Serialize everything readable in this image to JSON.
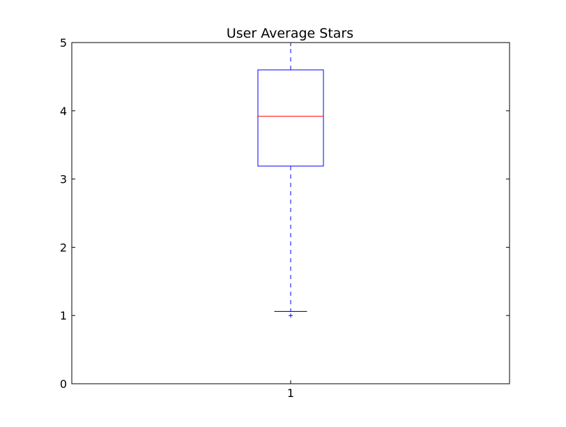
{
  "chart_data": {
    "type": "box",
    "title": "User Average Stars",
    "xlabel": "",
    "ylabel": "",
    "categories": [
      "1"
    ],
    "ylim": [
      0,
      5
    ],
    "yticks": [
      "0",
      "1",
      "2",
      "3",
      "4",
      "5"
    ],
    "grid": false,
    "boxes": [
      {
        "label": "1",
        "whisker_low": 1.06,
        "q1": 3.19,
        "median": 3.92,
        "q3": 4.6,
        "whisker_high": 5.0,
        "outliers": [
          1.0
        ]
      }
    ],
    "colors": {
      "box": "#0000ff",
      "median": "#ff0000",
      "whisker": "#0000ff",
      "cap": "#000000",
      "outlier": "#0000ff"
    }
  }
}
